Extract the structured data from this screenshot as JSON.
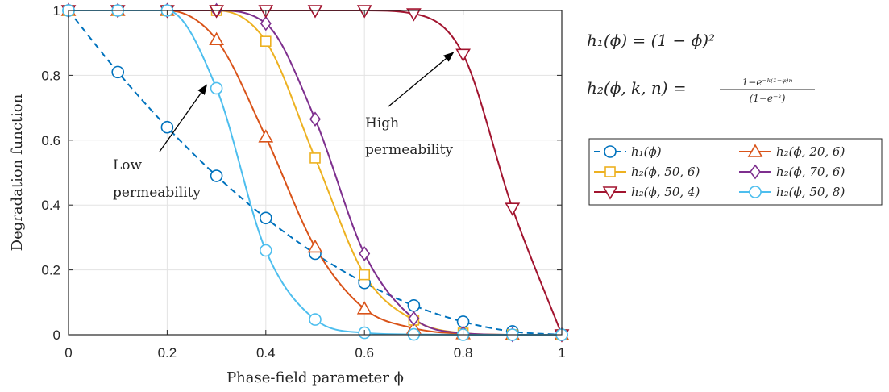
{
  "chart_data": {
    "type": "line",
    "xlabel": "Phase-field parameter ϕ",
    "ylabel": "Degradation function",
    "xlim": [
      0,
      1
    ],
    "ylim": [
      0,
      1
    ],
    "xticks": [
      0,
      0.2,
      0.4,
      0.6,
      0.8,
      1
    ],
    "xtick_labels": [
      "0",
      "0.2",
      "0.4",
      "0.6",
      "0.8",
      "1"
    ],
    "yticks": [
      0,
      0.2,
      0.4,
      0.6,
      0.8,
      1
    ],
    "ytick_labels": [
      "0",
      "0.2",
      "0.4",
      "0.6",
      "0.8",
      "1"
    ],
    "grid": true,
    "legend_position": "right",
    "x": [
      0,
      0.1,
      0.2,
      0.3,
      0.4,
      0.5,
      0.6,
      0.7,
      0.8,
      0.9,
      1.0
    ],
    "series": [
      {
        "name": "h₁(ϕ)",
        "color": "#0072BD",
        "dashed": true,
        "marker": "circle",
        "values": [
          1.0,
          0.81,
          0.64,
          0.49,
          0.36,
          0.25,
          0.16,
          0.09,
          0.04,
          0.01,
          0.0
        ]
      },
      {
        "name": "h₂(ϕ, 20, 6)",
        "color": "#D95319",
        "dashed": false,
        "marker": "triangle-up",
        "values": [
          1.0,
          1.0,
          1.0,
          0.91,
          0.61,
          0.27,
          0.08,
          0.02,
          0.003,
          0.0,
          0.0
        ]
      },
      {
        "name": "h₂(ϕ, 50, 6)",
        "color": "#EDB120",
        "dashed": false,
        "marker": "square",
        "values": [
          1.0,
          1.0,
          1.0,
          1.0,
          0.905,
          0.545,
          0.185,
          0.045,
          0.005,
          0.0,
          0.0
        ]
      },
      {
        "name": "h₂(ϕ, 70, 6)",
        "color": "#7E2F8E",
        "dashed": false,
        "marker": "diamond",
        "values": [
          1.0,
          1.0,
          1.0,
          1.0,
          0.96,
          0.665,
          0.25,
          0.05,
          0.005,
          0.0,
          0.0
        ]
      },
      {
        "name": "h₂(ϕ, 50, 4)",
        "color": "#A2142F",
        "dashed": false,
        "marker": "triangle-down",
        "values": [
          1.0,
          1.0,
          1.0,
          1.0,
          1.0,
          1.0,
          1.0,
          0.99,
          0.865,
          0.39,
          0.0
        ]
      },
      {
        "name": "h₂(ϕ, 50, 8)",
        "color": "#4DBEEE",
        "dashed": false,
        "marker": "circle",
        "values": [
          1.0,
          1.0,
          1.0,
          0.76,
          0.26,
          0.047,
          0.006,
          0.001,
          0.0,
          0.0,
          0.0
        ]
      }
    ],
    "annotations": [
      {
        "lines": [
          "Low",
          "permeability"
        ],
        "arrow_to": [
          0.28,
          0.77
        ]
      },
      {
        "lines": [
          "High",
          "permeability"
        ],
        "arrow_to": [
          0.78,
          0.87
        ]
      }
    ],
    "equations": {
      "h1": "h₁(ϕ) = (1 − ϕ)²",
      "h2_lhs": "h₂(ϕ, k, n) =",
      "h2_num": "1−e⁻ᵏ⁽¹⁻ᵠ⁾ⁿ",
      "h2_den": "(1−e⁻ᵏ)"
    }
  }
}
